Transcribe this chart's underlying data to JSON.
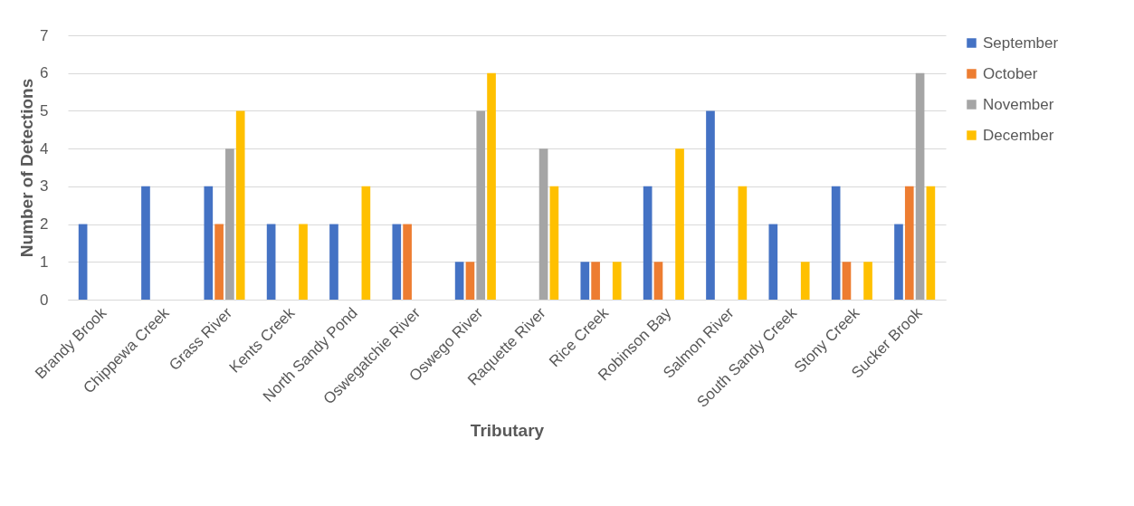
{
  "chart_data": {
    "type": "bar",
    "xlabel": "Tributary",
    "ylabel": "Number of Detections",
    "categories": [
      "Brandy Brook",
      "Chippewa Creek",
      "Grass River",
      "Kents Creek",
      "North Sandy Pond",
      "Oswegatchie River",
      "Oswego River",
      "Raquette River",
      "Rice Creek",
      "Robinson Bay",
      "Salmon River",
      "South Sandy Creek",
      "Stony Creek",
      "Sucker Brook"
    ],
    "series": [
      {
        "name": "September",
        "color": "#4472c4",
        "values": [
          2,
          3,
          3,
          2,
          2,
          2,
          1,
          0,
          1,
          3,
          5,
          2,
          3,
          2
        ]
      },
      {
        "name": "October",
        "color": "#ed7d31",
        "values": [
          0,
          0,
          2,
          0,
          0,
          2,
          1,
          0,
          1,
          1,
          0,
          0,
          1,
          3
        ]
      },
      {
        "name": "November",
        "color": "#a5a5a5",
        "values": [
          0,
          0,
          4,
          0,
          0,
          0,
          5,
          4,
          0,
          0,
          0,
          0,
          0,
          6
        ]
      },
      {
        "name": "December",
        "color": "#ffc000",
        "values": [
          0,
          0,
          5,
          2,
          3,
          0,
          6,
          3,
          1,
          4,
          3,
          1,
          1,
          3
        ]
      }
    ],
    "ylim": [
      0,
      7
    ],
    "yticks": [
      0,
      1,
      2,
      3,
      4,
      5,
      6,
      7
    ],
    "grid": "y",
    "legend": "right"
  }
}
